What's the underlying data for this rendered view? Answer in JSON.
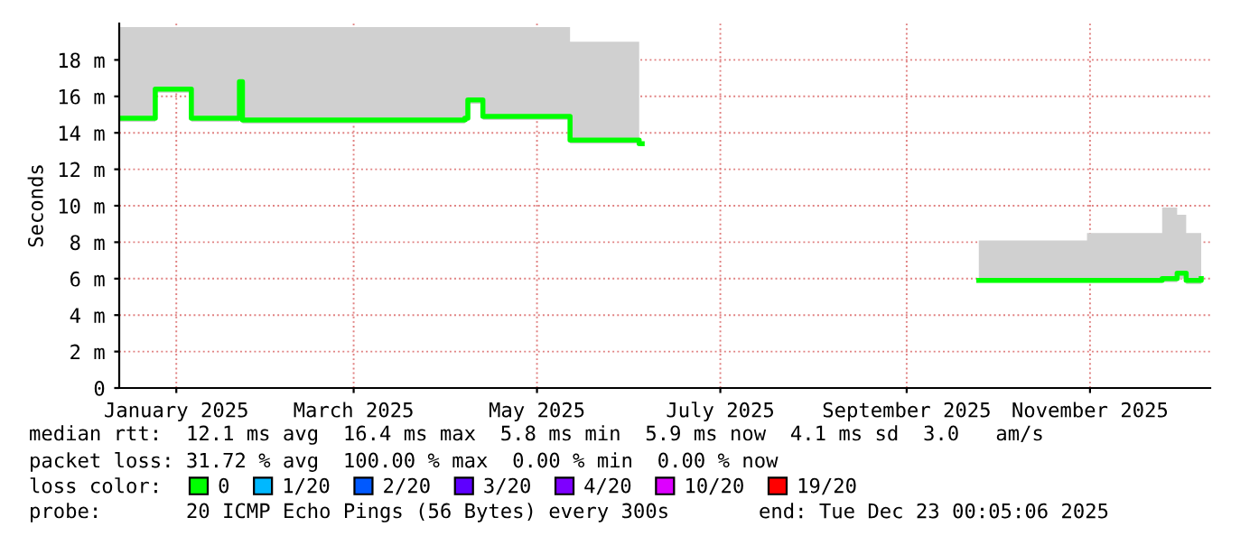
{
  "chart_data": {
    "type": "line",
    "ylabel": "Seconds",
    "x": [
      "2024-12-28",
      "2025-01-08",
      "2025-01-09",
      "2025-01-20",
      "2025-01-21",
      "2025-02-05",
      "2025-02-06",
      "2025-02-07",
      "2025-03-10",
      "2025-04-22",
      "2025-04-23",
      "2025-04-27",
      "2025-04-28",
      "2025-05-26",
      "2025-05-27",
      "2025-06-19",
      "2025-06-20",
      "2025-10-09",
      "2025-10-10",
      "2025-11-15",
      "2025-12-10",
      "2025-12-15",
      "2025-12-18",
      "2025-12-23"
    ],
    "series": [
      {
        "name": "0",
        "color": "#00ff00",
        "values": [
          14.8,
          14.8,
          16.4,
          16.4,
          14.8,
          14.8,
          16.8,
          14.7,
          14.7,
          14.8,
          15.8,
          15.8,
          14.9,
          14.9,
          13.6,
          13.4,
          null,
          null,
          5.9,
          5.9,
          6.0,
          6.3,
          5.9,
          6.0
        ],
        "lower": [
          14.6,
          14.6,
          16.2,
          16.2,
          14.6,
          14.6,
          16.5,
          14.5,
          14.5,
          14.6,
          15.6,
          15.6,
          14.7,
          14.7,
          13.4,
          13.2,
          null,
          null,
          5.8,
          5.8,
          5.8,
          6.0,
          5.7,
          5.8
        ],
        "upper": [
          19.8,
          19.8,
          19.8,
          19.8,
          19.8,
          19.8,
          19.8,
          19.8,
          19.8,
          19.8,
          19.8,
          19.8,
          19.8,
          19.8,
          19.0,
          19.0,
          null,
          null,
          8.1,
          8.5,
          9.9,
          9.5,
          8.5,
          7.9
        ]
      },
      {
        "name": "1/20",
        "color": "#00b8ff",
        "values": [
          null,
          null,
          null,
          null,
          null,
          null,
          null,
          null,
          null,
          null,
          null,
          null,
          null,
          null,
          null,
          null,
          null,
          null,
          null,
          null,
          null,
          null,
          null,
          null
        ]
      },
      {
        "name": "2/20",
        "color": "#0059ff",
        "values": [
          null,
          null,
          null,
          null,
          null,
          null,
          null,
          null,
          null,
          null,
          null,
          null,
          null,
          null,
          null,
          null,
          null,
          null,
          null,
          null,
          null,
          null,
          null,
          null
        ]
      },
      {
        "name": "3/20",
        "color": "#5e00ff",
        "values": [
          null,
          null,
          null,
          null,
          null,
          null,
          null,
          null,
          null,
          null,
          null,
          null,
          null,
          null,
          null,
          null,
          null,
          null,
          null,
          null,
          null,
          null,
          null,
          null
        ]
      },
      {
        "name": "4/20",
        "color": "#7e00ff",
        "values": [
          null,
          null,
          null,
          null,
          null,
          null,
          null,
          null,
          null,
          null,
          null,
          null,
          null,
          null,
          null,
          null,
          null,
          null,
          null,
          null,
          null,
          null,
          null,
          null
        ]
      },
      {
        "name": "10/20",
        "color": "#dd00ff",
        "values": [
          null,
          null,
          null,
          null,
          null,
          null,
          null,
          null,
          null,
          null,
          null,
          null,
          null,
          null,
          null,
          null,
          null,
          null,
          null,
          null,
          null,
          null,
          null,
          null
        ]
      },
      {
        "name": "19/20",
        "color": "#ff0000",
        "values": [
          null,
          null,
          null,
          null,
          null,
          null,
          null,
          null,
          null,
          null,
          null,
          null,
          null,
          null,
          null,
          null,
          null,
          null,
          null,
          null,
          null,
          null,
          null,
          null
        ]
      }
    ],
    "legend_title": "loss color:",
    "legend": "bottom",
    "xlim": [
      "2024-12-28",
      "2025-12-26"
    ],
    "xticks": [
      {
        "value": "2025-01-16",
        "label": "January 2025"
      },
      {
        "value": "2025-03-16",
        "label": "March 2025"
      },
      {
        "value": "2025-05-16",
        "label": "May 2025"
      },
      {
        "value": "2025-07-16",
        "label": "July 2025"
      },
      {
        "value": "2025-09-16",
        "label": "September 2025"
      },
      {
        "value": "2025-11-16",
        "label": "November 2025"
      }
    ],
    "ylim": [
      0,
      20
    ],
    "yticks": [
      0,
      {
        "value": 2,
        "label": "2 m"
      },
      {
        "value": 4,
        "label": "4 m"
      },
      {
        "value": 6,
        "label": "6 m"
      },
      {
        "value": 8,
        "label": "8 m"
      },
      {
        "value": 10,
        "label": "10 m"
      },
      {
        "value": 12,
        "label": "12 m"
      },
      {
        "value": 14,
        "label": "14 m"
      },
      {
        "value": 16,
        "label": "16 m"
      },
      {
        "value": 18,
        "label": "18 m"
      }
    ],
    "grid": true,
    "marker": "none",
    "line_style": "solid",
    "annotations": [
      "median rtt:  12.1 ms avg  16.4 ms max  5.8 ms min  5.9 ms now  4.1 ms sd  3.0   am/s",
      "packet loss: 31.72 % avg  100.00 % max  0.00 % min  0.00 % now",
      "probe:       20 ICMP Echo Pings (56 Bytes) every 300s",
      "end: Tue Dec 23 00:05:06 2025"
    ]
  }
}
